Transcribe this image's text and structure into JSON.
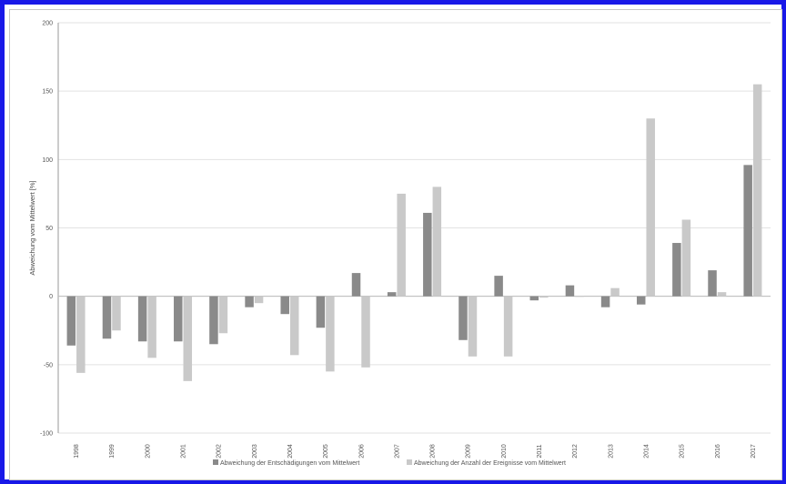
{
  "chart_data": {
    "type": "bar",
    "title": "",
    "xlabel": "",
    "ylabel": "Abweichung vom Mittelwert [%]",
    "ylim": [
      -100,
      200
    ],
    "yticks": [
      -100,
      -50,
      0,
      50,
      100,
      150,
      200
    ],
    "grid": true,
    "legend_position": "bottom",
    "categories": [
      "1998",
      "1999",
      "2000",
      "2001",
      "2002",
      "2003",
      "2004",
      "2005",
      "2006",
      "2007",
      "2008",
      "2009",
      "2010",
      "2011",
      "2012",
      "2013",
      "2014",
      "2015",
      "2016",
      "2017"
    ],
    "series": [
      {
        "name": "Abweichung der Entschädigungen vom Mittelwert",
        "color": "#8a8a8a",
        "values": [
          -36,
          -31,
          -33,
          -33,
          -35,
          -8,
          -13,
          -23,
          17,
          3,
          61,
          -32,
          15,
          -3,
          8,
          -8,
          -6,
          39,
          19,
          96
        ]
      },
      {
        "name": "Abweichung der Anzahl der Ereignisse vom Mittelwert",
        "color": "#c9c9c9",
        "values": [
          -56,
          -25,
          -45,
          -62,
          -27,
          -5,
          -43,
          -55,
          -52,
          75,
          80,
          -44,
          -44,
          -1,
          0,
          6,
          130,
          56,
          3,
          155
        ]
      }
    ]
  }
}
